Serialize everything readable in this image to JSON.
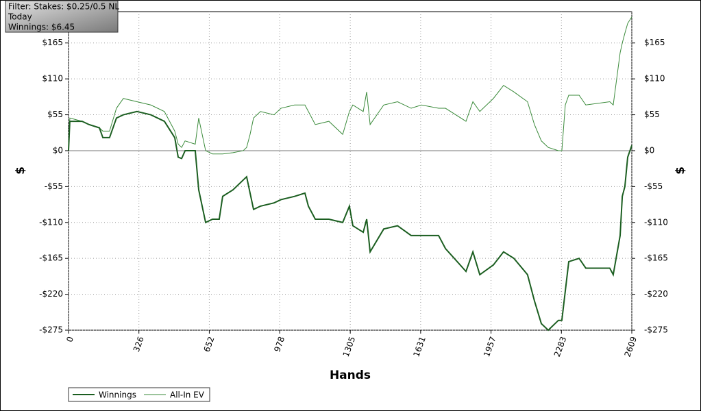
{
  "chart_data": {
    "type": "line",
    "info_box": [
      "Filter: Stakes: $0.25/0.5 NL",
      "Today",
      "Winnings: $6.45"
    ],
    "x_label": "Hands",
    "y_label": "$",
    "y2_label": "$",
    "x": [
      0,
      6,
      63,
      95,
      143,
      159,
      190,
      222,
      254,
      317,
      381,
      444,
      492,
      508,
      524,
      540,
      587,
      603,
      635,
      667,
      698,
      714,
      762,
      809,
      825,
      841,
      857,
      889,
      952,
      984,
      1047,
      1095,
      1111,
      1143,
      1206,
      1270,
      1301,
      1317,
      1365,
      1381,
      1397,
      1460,
      1524,
      1587,
      1635,
      1714,
      1746,
      1841,
      1873,
      1905,
      1968,
      2015,
      2063,
      2126,
      2158,
      2190,
      2222,
      2269,
      2285,
      2301,
      2317,
      2365,
      2396,
      2507,
      2523,
      2539,
      2555,
      2565,
      2577,
      2590,
      2609
    ],
    "series": [
      {
        "name": "Winnings",
        "color": "#1b5e20",
        "values": [
          0,
          45,
          45,
          40,
          35,
          20,
          20,
          50,
          55,
          60,
          55,
          45,
          20,
          -10,
          -12,
          0,
          0,
          -60,
          -110,
          -105,
          -105,
          -70,
          -60,
          -45,
          -40,
          -65,
          -90,
          -85,
          -80,
          -75,
          -70,
          -65,
          -85,
          -105,
          -105,
          -110,
          -85,
          -115,
          -125,
          -105,
          -155,
          -120,
          -115,
          -130,
          -130,
          -130,
          -150,
          -185,
          -155,
          -190,
          -175,
          -155,
          -165,
          -190,
          -230,
          -265,
          -275,
          -260,
          -260,
          -215,
          -170,
          -165,
          -180,
          -180,
          -190,
          -160,
          -130,
          -70,
          -55,
          -10,
          8
        ]
      },
      {
        "name": "All-In EV",
        "color": "#3a8a3a",
        "values": [
          0,
          50,
          45,
          40,
          35,
          30,
          30,
          65,
          80,
          75,
          70,
          60,
          30,
          10,
          5,
          15,
          10,
          50,
          0,
          -5,
          -5,
          -5,
          -3,
          0,
          5,
          25,
          50,
          60,
          55,
          65,
          70,
          70,
          60,
          40,
          45,
          25,
          60,
          70,
          60,
          90,
          40,
          70,
          75,
          65,
          70,
          65,
          65,
          45,
          75,
          60,
          80,
          100,
          90,
          75,
          40,
          15,
          5,
          0,
          0,
          70,
          85,
          85,
          70,
          75,
          70,
          110,
          150,
          165,
          180,
          195,
          205
        ]
      }
    ],
    "xlim": [
      0,
      2609
    ],
    "xticks": [
      0,
      326,
      652,
      978,
      1305,
      1631,
      1957,
      2283,
      2609
    ],
    "ylim": [
      -275,
      213
    ],
    "yticks": [
      {
        "value": -275,
        "label": "-$275"
      },
      {
        "value": -220,
        "label": "-$220"
      },
      {
        "value": -165,
        "label": "-$165"
      },
      {
        "value": -110,
        "label": "-$110"
      },
      {
        "value": -55,
        "label": "-$55"
      },
      {
        "value": 0,
        "label": "$0"
      },
      {
        "value": 55,
        "label": "$55"
      },
      {
        "value": 110,
        "label": "$110"
      },
      {
        "value": 165,
        "label": "$165"
      }
    ],
    "grid": true
  }
}
